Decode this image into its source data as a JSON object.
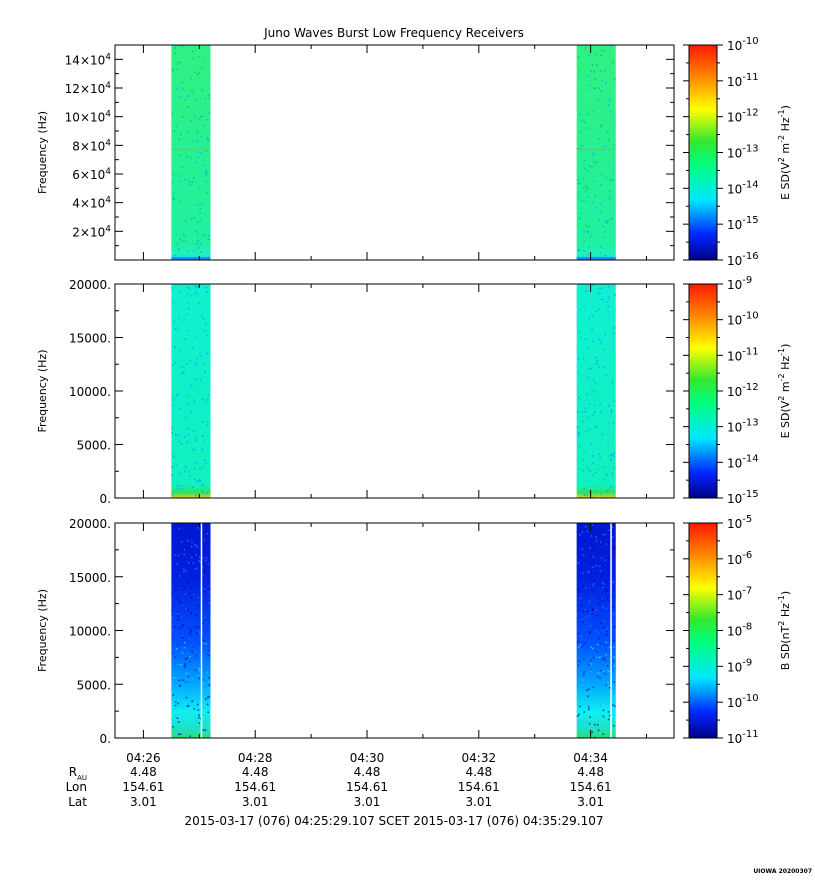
{
  "chart_data": {
    "type": "heatmap",
    "title": "Juno Waves Burst Low Frequency Receivers",
    "x": {
      "tick_labels": [
        "04:26",
        "04:28",
        "04:30",
        "04:32",
        "04:34"
      ],
      "tick_minutes": [
        26,
        28,
        30,
        32,
        34
      ],
      "range_minutes": [
        25.4918,
        35.4918
      ]
    },
    "bursts_minutes": [
      [
        26.5,
        27.2
      ],
      [
        33.75,
        34.45
      ]
    ],
    "panels": [
      {
        "ylabel": "Frequency (Hz)",
        "ylim": [
          0,
          150000
        ],
        "ytick_mantissa": [
          "2",
          "4",
          "6",
          "8",
          "10",
          "12",
          "14"
        ],
        "ytick_exp": "4",
        "ytick_values": [
          20000,
          40000,
          60000,
          80000,
          100000,
          120000,
          140000
        ],
        "colorbar": {
          "label_prefix": "E SD(V",
          "label_mid": " m",
          "label_mid2": " Hz",
          "label_suffix": ")",
          "sup1": "2",
          "sup2": "-2",
          "sup3": "-1",
          "tick_base": "10",
          "tick_exponents": [
            "-10",
            "-11",
            "-12",
            "-13",
            "-14",
            "-15",
            "-16"
          ]
        }
      },
      {
        "ylabel": "Frequency (Hz)",
        "ylim": [
          0,
          20000
        ],
        "ytick_labels": [
          "0.",
          "5000.",
          "10000.",
          "15000.",
          "20000."
        ],
        "ytick_values": [
          0,
          5000,
          10000,
          15000,
          20000
        ],
        "colorbar": {
          "label_prefix": "E SD(V",
          "label_mid": " m",
          "label_mid2": " Hz",
          "label_suffix": ")",
          "sup1": "2",
          "sup2": "-2",
          "sup3": "-1",
          "tick_base": "10",
          "tick_exponents": [
            "-9",
            "-10",
            "-11",
            "-12",
            "-13",
            "-14",
            "-15"
          ]
        }
      },
      {
        "ylabel": "Frequency (Hz)",
        "ylim": [
          0,
          20000
        ],
        "ytick_labels": [
          "0.",
          "5000.",
          "10000.",
          "15000.",
          "20000."
        ],
        "ytick_values": [
          0,
          5000,
          10000,
          15000,
          20000
        ],
        "colorbar": {
          "label_prefix": "B SD(nT",
          "label_mid": " Hz",
          "label_suffix": ")",
          "sup1": "2",
          "sup2": "-1",
          "tick_base": "10",
          "tick_exponents": [
            "-5",
            "-6",
            "-7",
            "-8",
            "-9",
            "-10",
            "-11"
          ]
        }
      }
    ],
    "ephemeris": {
      "row_labels": [
        "R",
        "Lon",
        "Lat"
      ],
      "r_subscript": "AU",
      "columns": [
        {
          "time": "04:26",
          "r": "4.48",
          "lon": "154.61",
          "lat": "3.01"
        },
        {
          "time": "04:28",
          "r": "4.48",
          "lon": "154.61",
          "lat": "3.01"
        },
        {
          "time": "04:30",
          "r": "4.48",
          "lon": "154.61",
          "lat": "3.01"
        },
        {
          "time": "04:32",
          "r": "4.48",
          "lon": "154.61",
          "lat": "3.01"
        },
        {
          "time": "04:34",
          "r": "4.48",
          "lon": "154.61",
          "lat": "3.01"
        }
      ]
    },
    "time_range_label": "2015-03-17 (076) 04:25:29.107    SCET    2015-03-17 (076) 04:35:29.107",
    "footer_stamp": "UIOWA 20200307"
  }
}
